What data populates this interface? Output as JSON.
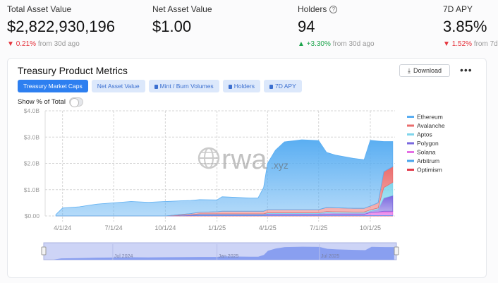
{
  "stats": [
    {
      "label": "Total Asset Value",
      "value": "$2,822,930,196",
      "change": "0.21%",
      "direction": "down",
      "suffix": "from 30d ago"
    },
    {
      "label": "Net Asset Value",
      "value": "$1.00"
    },
    {
      "label": "Holders",
      "value": "94",
      "change": "+3.30%",
      "direction": "up",
      "suffix": "from 30d ago",
      "icon": "help-circle-icon"
    },
    {
      "label": "7D APY",
      "value": "3.85%",
      "change": "1.52%",
      "direction": "down",
      "suffix": "from 7d"
    }
  ],
  "card": {
    "title": "Treasury Product Metrics",
    "download": "Download",
    "more": "•••",
    "tabs": [
      {
        "label": "Treasury Market Caps",
        "active": true
      },
      {
        "label": "Net Asset Value"
      },
      {
        "label": "Mint / Burn Volumes",
        "locked": true
      },
      {
        "label": "Holders",
        "locked": true
      },
      {
        "label": "7D APY",
        "locked": true
      }
    ],
    "toggle_label": "Show % of Total",
    "toggle_on": false
  },
  "watermark": {
    "text": "rwa",
    "suffix": ".xyz"
  },
  "chart_data": {
    "type": "area",
    "stacked": true,
    "grid": true,
    "legend": "right",
    "ylim": [
      0,
      4
    ],
    "yticks": [
      "$0.00",
      "$1.0B",
      "$2.0B",
      "$3.0B",
      "$4.0B"
    ],
    "xticks": [
      {
        "label": "4/1/24",
        "date": "2024-04-01"
      },
      {
        "label": "7/1/24",
        "date": "2024-07-01"
      },
      {
        "label": "10/1/24",
        "date": "2024-10-01"
      },
      {
        "label": "1/1/25",
        "date": "2025-01-01"
      },
      {
        "label": "4/1/25",
        "date": "2025-04-01"
      },
      {
        "label": "7/1/25",
        "date": "2025-07-01"
      },
      {
        "label": "10/1/25",
        "date": "2025-10-01"
      }
    ],
    "x": [
      "2024-03-20",
      "2024-04-01",
      "2024-05-01",
      "2024-06-01",
      "2024-07-01",
      "2024-08-01",
      "2024-09-01",
      "2024-10-01",
      "2024-11-15",
      "2024-12-01",
      "2025-01-01",
      "2025-01-10",
      "2025-02-01",
      "2025-03-01",
      "2025-03-15",
      "2025-03-25",
      "2025-04-01",
      "2025-04-15",
      "2025-05-01",
      "2025-06-01",
      "2025-07-01",
      "2025-07-15",
      "2025-08-01",
      "2025-09-01",
      "2025-09-20",
      "2025-10-01",
      "2025-10-15",
      "2025-10-25",
      "2025-11-10"
    ],
    "series": [
      {
        "name": "Optimism",
        "color": "#e23d4e",
        "values": [
          0,
          0,
          0,
          0,
          0,
          0,
          0,
          0,
          0.01,
          0.01,
          0.01,
          0.01,
          0.01,
          0.01,
          0.01,
          0.01,
          0.01,
          0.01,
          0.01,
          0.01,
          0.01,
          0.01,
          0.01,
          0.01,
          0.01,
          0.01,
          0.01,
          0.01,
          0.01
        ]
      },
      {
        "name": "Arbitrum",
        "color": "#48a4ec",
        "values": [
          0,
          0,
          0,
          0,
          0,
          0,
          0,
          0,
          0.01,
          0.02,
          0.02,
          0.02,
          0.02,
          0.02,
          0.02,
          0.02,
          0.02,
          0.02,
          0.02,
          0.02,
          0.02,
          0.02,
          0.02,
          0.02,
          0.02,
          0.02,
          0.02,
          0.02,
          0.02
        ]
      },
      {
        "name": "Solana",
        "color": "#e46fe4",
        "values": [
          0,
          0,
          0,
          0,
          0,
          0,
          0,
          0,
          0,
          0,
          0,
          0,
          0,
          0,
          0,
          0,
          0.02,
          0.02,
          0.02,
          0.02,
          0.02,
          0.03,
          0.03,
          0.03,
          0.03,
          0.1,
          0.12,
          0.15,
          0.15
        ]
      },
      {
        "name": "Polygon",
        "color": "#7a68df",
        "values": [
          0,
          0,
          0,
          0,
          0,
          0,
          0,
          0,
          0.02,
          0.03,
          0.03,
          0.03,
          0.03,
          0.03,
          0.03,
          0.03,
          0.04,
          0.04,
          0.04,
          0.04,
          0.04,
          0.06,
          0.05,
          0.05,
          0.05,
          0.05,
          0.1,
          0.5,
          0.6
        ]
      },
      {
        "name": "Aptos",
        "color": "#7fd5ec",
        "values": [
          0,
          0,
          0,
          0,
          0,
          0,
          0,
          0,
          0.01,
          0.02,
          0.02,
          0.02,
          0.02,
          0.02,
          0.02,
          0.02,
          0.03,
          0.03,
          0.03,
          0.03,
          0.03,
          0.05,
          0.05,
          0.04,
          0.04,
          0.05,
          0.05,
          0.4,
          0.5
        ]
      },
      {
        "name": "Avalanche",
        "color": "#ea6d6d",
        "values": [
          0,
          0,
          0,
          0,
          0,
          0,
          0,
          0,
          0.04,
          0.06,
          0.08,
          0.1,
          0.1,
          0.1,
          0.1,
          0.1,
          0.12,
          0.12,
          0.12,
          0.12,
          0.12,
          0.15,
          0.15,
          0.14,
          0.14,
          0.15,
          0.2,
          0.6,
          0.6
        ]
      },
      {
        "name": "Ethereum",
        "color": "#5aaef2",
        "values": [
          0.05,
          0.3,
          0.35,
          0.45,
          0.5,
          0.55,
          0.52,
          0.55,
          0.5,
          0.48,
          0.45,
          0.55,
          0.53,
          0.5,
          0.5,
          0.9,
          1.76,
          2.26,
          2.58,
          2.66,
          2.63,
          2.1,
          2.0,
          1.9,
          1.85,
          2.5,
          2.35,
          1.15,
          0.95
        ]
      }
    ],
    "navigator": {
      "labels": [
        "Jul 2024",
        "Jan 2025",
        "Jul 2025"
      ]
    }
  }
}
